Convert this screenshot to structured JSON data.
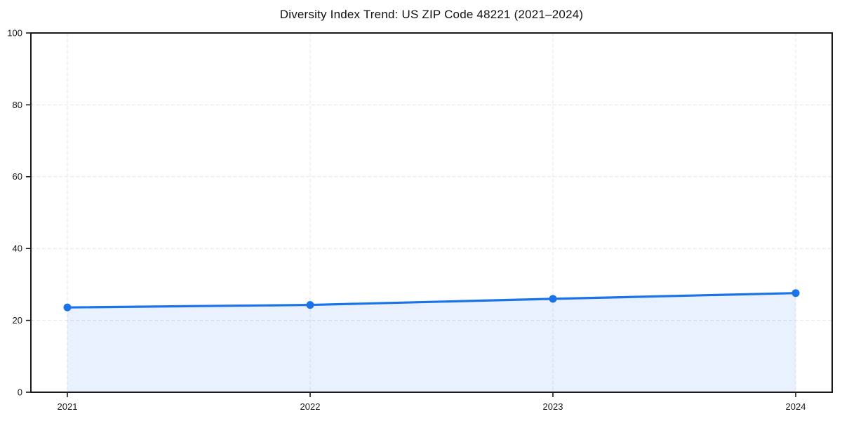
{
  "chart_data": {
    "type": "line",
    "title": "Diversity Index Trend: US ZIP Code 48221 (2021–2024)",
    "x": [
      2021,
      2022,
      2023,
      2024
    ],
    "xticks": [
      "2021",
      "2022",
      "2023",
      "2024"
    ],
    "series": [
      {
        "name": "Diversity Index",
        "values": [
          23.6,
          24.3,
          26.0,
          27.6
        ]
      }
    ],
    "xlabel": "",
    "ylabel": "",
    "ylim": [
      0,
      100
    ],
    "yticks": [
      0,
      20,
      40,
      60,
      80,
      100
    ],
    "grid": "dashed-both-axes",
    "legend": "none",
    "area_fill": true,
    "marker": "circle",
    "colors": {
      "line": "#1a73e8",
      "marker": "#1a73e8",
      "fill": "#1a73e8",
      "fill_opacity": "0.10",
      "grid": "#e5e5e5",
      "axis": "#1a1a1a",
      "tick_text": "#1a1a1a",
      "background": "#ffffff"
    }
  }
}
